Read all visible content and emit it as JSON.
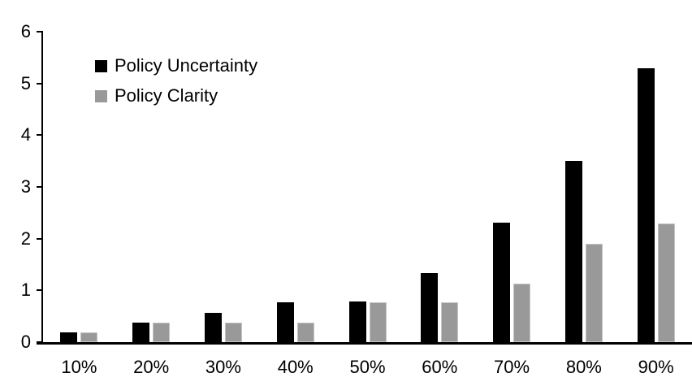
{
  "chart_data": {
    "type": "bar",
    "title": "",
    "xlabel": "",
    "ylabel": "",
    "categories": [
      "10%",
      "20%",
      "30%",
      "40%",
      "50%",
      "60%",
      "70%",
      "80%",
      "90%"
    ],
    "series": [
      {
        "name": "Policy Uncertainty",
        "color": "#000000",
        "values": [
          0.19,
          0.38,
          0.57,
          0.77,
          0.78,
          1.33,
          2.31,
          3.5,
          5.3
        ]
      },
      {
        "name": "Policy Clarity",
        "color": "#999999",
        "values": [
          0.19,
          0.38,
          0.38,
          0.38,
          0.77,
          0.77,
          1.13,
          1.9,
          2.3
        ]
      }
    ],
    "ylim": [
      0,
      6
    ],
    "yticks": [
      0,
      1,
      2,
      3,
      4,
      5,
      6
    ],
    "grid": false,
    "legend_position": "top-left-inside",
    "axis_color": "#000000",
    "background_color": "#ffffff"
  }
}
